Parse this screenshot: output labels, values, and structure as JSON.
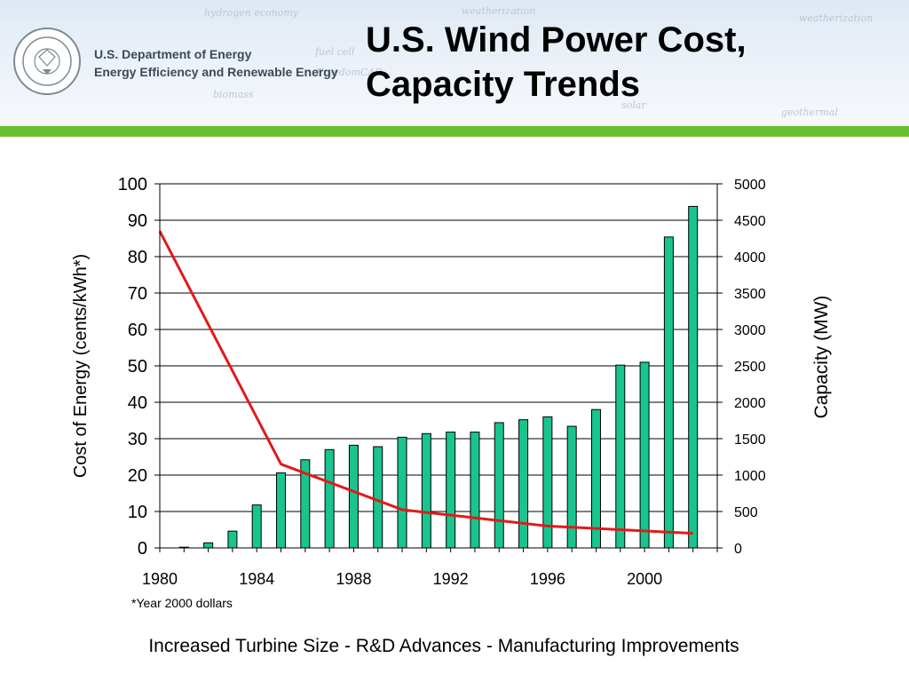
{
  "header": {
    "org_line1": "U.S. Department of Energy",
    "org_line2": "Energy Efficiency and Renewable Energy",
    "title_line1": "U.S. Wind Power Cost,",
    "title_line2": "Capacity Trends",
    "banner_words": [
      "hydrogen economy",
      "weatherization",
      "fuel cell",
      "FreedomCAR",
      "solar",
      "biomass",
      "geothermal"
    ]
  },
  "colors": {
    "accent_green": "#6abf31",
    "bar_fill": "#19c48f",
    "line_color": "#e01b1b"
  },
  "chart_data": {
    "type": "bar",
    "xlim": [
      1980,
      2003
    ],
    "x_ticks": [
      "1980",
      "1984",
      "1988",
      "1992",
      "1996",
      "2000"
    ],
    "ylabel_left": "Cost of Energy (cents/kWh*)",
    "ylabel_right": "Capacity (MW)",
    "ylim_left": [
      0,
      100
    ],
    "ylim_right": [
      0,
      5000
    ],
    "left_ticks": [
      "0",
      "10",
      "20",
      "30",
      "40",
      "50",
      "60",
      "70",
      "80",
      "90",
      "100"
    ],
    "right_ticks": [
      "0",
      "500",
      "1000",
      "1500",
      "2000",
      "2500",
      "3000",
      "3500",
      "4000",
      "4500",
      "5000"
    ],
    "grid": "horizontal",
    "series": [
      {
        "axis": "right",
        "type": "bar",
        "x": [
          1981,
          1982,
          1983,
          1984,
          1985,
          1986,
          1987,
          1988,
          1989,
          1990,
          1991,
          1992,
          1993,
          1994,
          1995,
          1996,
          1997,
          1998,
          1999,
          2000,
          2001,
          2002
        ],
        "values": [
          10,
          70,
          230,
          590,
          1030,
          1210,
          1350,
          1410,
          1390,
          1520,
          1570,
          1590,
          1590,
          1720,
          1760,
          1800,
          1670,
          1900,
          2510,
          2550,
          4270,
          4690
        ]
      },
      {
        "axis": "left",
        "type": "line",
        "x": [
          1980,
          1985,
          1990,
          1996,
          2002
        ],
        "values": [
          87,
          23,
          10.5,
          6,
          4
        ]
      }
    ]
  },
  "footnote": "*Year 2000 dollars",
  "caption": "Increased Turbine Size - R&D Advances - Manufacturing Improvements"
}
